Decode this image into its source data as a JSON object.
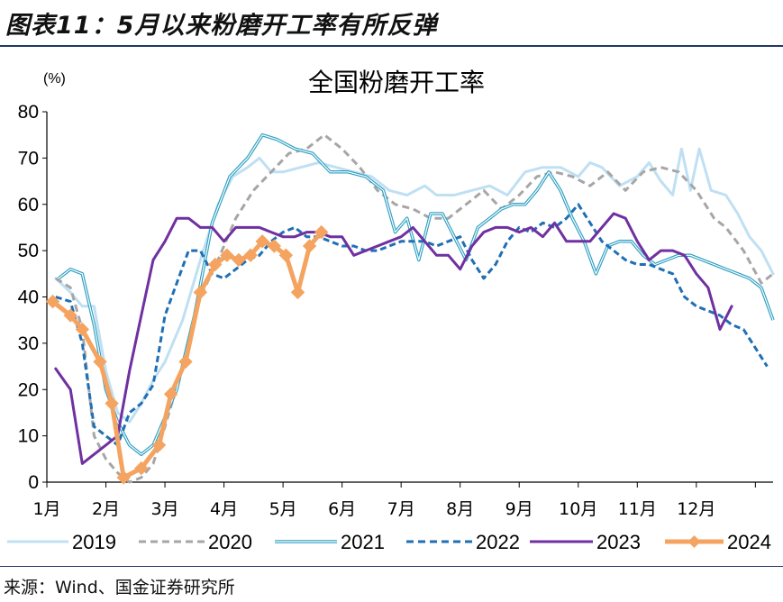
{
  "figure": {
    "title": "图表11：5月以来粉磨开工率有所反弹",
    "source": "来源：Wind、国金证券研究所"
  },
  "chart_data": {
    "type": "line",
    "title": "全国粉磨开工率",
    "unit": "(%)",
    "ylim": [
      0,
      80
    ],
    "yticks": [
      0,
      10,
      20,
      30,
      40,
      50,
      60,
      70,
      80
    ],
    "xlim": [
      0,
      12.3
    ],
    "month_labels": [
      "1月",
      "2月",
      "3月",
      "4月",
      "5月",
      "6月",
      "7月",
      "8月",
      "9月",
      "10月",
      "11月",
      "12月"
    ],
    "legend_position": "bottom",
    "series": [
      {
        "name": "2019",
        "color": "#bfe0f3",
        "style": "solid",
        "width": 3,
        "marker": "none",
        "points": [
          [
            0.15,
            44
          ],
          [
            0.4,
            41
          ],
          [
            0.6,
            38
          ],
          [
            0.8,
            38
          ],
          [
            1.0,
            24
          ],
          [
            1.2,
            15
          ],
          [
            1.4,
            13
          ],
          [
            1.6,
            17
          ],
          [
            1.8,
            22
          ],
          [
            2.0,
            26
          ],
          [
            2.3,
            35
          ],
          [
            2.6,
            48
          ],
          [
            2.9,
            60
          ],
          [
            3.15,
            66
          ],
          [
            3.4,
            68
          ],
          [
            3.6,
            70
          ],
          [
            3.8,
            67
          ],
          [
            4.0,
            67
          ],
          [
            4.3,
            68
          ],
          [
            4.6,
            69
          ],
          [
            4.9,
            68
          ],
          [
            5.2,
            67
          ],
          [
            5.5,
            66
          ],
          [
            5.8,
            63
          ],
          [
            6.1,
            62
          ],
          [
            6.4,
            64
          ],
          [
            6.6,
            62
          ],
          [
            6.9,
            62
          ],
          [
            7.2,
            63
          ],
          [
            7.5,
            64
          ],
          [
            7.8,
            62
          ],
          [
            8.1,
            67
          ],
          [
            8.4,
            68
          ],
          [
            8.7,
            68
          ],
          [
            9.0,
            66
          ],
          [
            9.2,
            69
          ],
          [
            9.4,
            68
          ],
          [
            9.7,
            64
          ],
          [
            10.0,
            66
          ],
          [
            10.2,
            69
          ],
          [
            10.4,
            65
          ],
          [
            10.6,
            62
          ],
          [
            10.75,
            72
          ],
          [
            10.9,
            63
          ],
          [
            11.05,
            72
          ],
          [
            11.25,
            63
          ],
          [
            11.5,
            62
          ],
          [
            11.7,
            58
          ],
          [
            11.9,
            53
          ],
          [
            12.1,
            50
          ],
          [
            12.3,
            45
          ]
        ]
      },
      {
        "name": "2020",
        "color": "#a6a6a6",
        "style": "dashed",
        "width": 3,
        "marker": "none",
        "points": [
          [
            0.15,
            44
          ],
          [
            0.4,
            42
          ],
          [
            0.6,
            33
          ],
          [
            0.8,
            10
          ],
          [
            1.0,
            5
          ],
          [
            1.2,
            2
          ],
          [
            1.4,
            0
          ],
          [
            1.6,
            1
          ],
          [
            1.8,
            4
          ],
          [
            2.0,
            12
          ],
          [
            2.3,
            25
          ],
          [
            2.6,
            40
          ],
          [
            2.9,
            48
          ],
          [
            3.2,
            57
          ],
          [
            3.5,
            63
          ],
          [
            3.8,
            67
          ],
          [
            4.1,
            71
          ],
          [
            4.4,
            72
          ],
          [
            4.7,
            75
          ],
          [
            5.0,
            72
          ],
          [
            5.3,
            68
          ],
          [
            5.6,
            63
          ],
          [
            5.9,
            60
          ],
          [
            6.2,
            59
          ],
          [
            6.5,
            57
          ],
          [
            6.8,
            57
          ],
          [
            7.1,
            60
          ],
          [
            7.4,
            63
          ],
          [
            7.7,
            59
          ],
          [
            8.0,
            62
          ],
          [
            8.3,
            66
          ],
          [
            8.6,
            67
          ],
          [
            8.9,
            66
          ],
          [
            9.2,
            64
          ],
          [
            9.5,
            67
          ],
          [
            9.8,
            63
          ],
          [
            10.1,
            67
          ],
          [
            10.4,
            68
          ],
          [
            10.7,
            67
          ],
          [
            11.0,
            63
          ],
          [
            11.3,
            57
          ],
          [
            11.5,
            55
          ],
          [
            11.8,
            50
          ],
          [
            12.1,
            43
          ],
          [
            12.3,
            45
          ]
        ]
      },
      {
        "name": "2021",
        "color": "#2e9fc2",
        "style": "double",
        "width": 3,
        "marker": "none",
        "points": [
          [
            0.2,
            44
          ],
          [
            0.4,
            46
          ],
          [
            0.6,
            45
          ],
          [
            0.8,
            34
          ],
          [
            1.0,
            20
          ],
          [
            1.2,
            13
          ],
          [
            1.4,
            8
          ],
          [
            1.6,
            6
          ],
          [
            1.8,
            8
          ],
          [
            2.0,
            14
          ],
          [
            2.2,
            20
          ],
          [
            2.5,
            36
          ],
          [
            2.8,
            56
          ],
          [
            3.1,
            66
          ],
          [
            3.4,
            70
          ],
          [
            3.65,
            75
          ],
          [
            3.9,
            74
          ],
          [
            4.2,
            72
          ],
          [
            4.5,
            71
          ],
          [
            4.8,
            67
          ],
          [
            5.1,
            67
          ],
          [
            5.4,
            66
          ],
          [
            5.7,
            63
          ],
          [
            5.9,
            54
          ],
          [
            6.1,
            57
          ],
          [
            6.3,
            48
          ],
          [
            6.5,
            58
          ],
          [
            6.7,
            58
          ],
          [
            6.9,
            53
          ],
          [
            7.1,
            48
          ],
          [
            7.3,
            55
          ],
          [
            7.5,
            57
          ],
          [
            7.7,
            59
          ],
          [
            7.9,
            60
          ],
          [
            8.1,
            60
          ],
          [
            8.3,
            63
          ],
          [
            8.5,
            67
          ],
          [
            8.7,
            63
          ],
          [
            8.9,
            57
          ],
          [
            9.1,
            52
          ],
          [
            9.3,
            45
          ],
          [
            9.5,
            51
          ],
          [
            9.7,
            52
          ],
          [
            9.9,
            52
          ],
          [
            10.1,
            49
          ],
          [
            10.3,
            47
          ],
          [
            10.5,
            48
          ],
          [
            10.7,
            49
          ],
          [
            10.9,
            49
          ],
          [
            11.1,
            48
          ],
          [
            11.3,
            47
          ],
          [
            11.5,
            46
          ],
          [
            11.7,
            45
          ],
          [
            11.9,
            44
          ],
          [
            12.1,
            42
          ],
          [
            12.3,
            35
          ]
        ]
      },
      {
        "name": "2022",
        "color": "#1f6fb5",
        "style": "dashed-thick",
        "width": 3,
        "marker": "none",
        "points": [
          [
            0.15,
            40
          ],
          [
            0.4,
            39
          ],
          [
            0.6,
            30
          ],
          [
            0.8,
            12
          ],
          [
            1.0,
            10
          ],
          [
            1.2,
            8
          ],
          [
            1.4,
            15
          ],
          [
            1.6,
            17
          ],
          [
            1.8,
            21
          ],
          [
            2.0,
            36
          ],
          [
            2.2,
            43
          ],
          [
            2.4,
            50
          ],
          [
            2.6,
            50
          ],
          [
            2.8,
            45
          ],
          [
            3.0,
            44
          ],
          [
            3.2,
            46
          ],
          [
            3.4,
            48
          ],
          [
            3.6,
            49
          ],
          [
            3.8,
            52
          ],
          [
            4.0,
            54
          ],
          [
            4.2,
            55
          ],
          [
            4.4,
            53
          ],
          [
            4.6,
            53
          ],
          [
            4.8,
            52
          ],
          [
            5.0,
            51
          ],
          [
            5.2,
            51
          ],
          [
            5.4,
            50
          ],
          [
            5.6,
            50
          ],
          [
            5.8,
            51
          ],
          [
            6.0,
            52
          ],
          [
            6.2,
            52
          ],
          [
            6.4,
            52
          ],
          [
            6.6,
            51
          ],
          [
            6.8,
            52
          ],
          [
            7.0,
            53
          ],
          [
            7.2,
            48
          ],
          [
            7.4,
            44
          ],
          [
            7.6,
            47
          ],
          [
            7.8,
            52
          ],
          [
            8.0,
            55
          ],
          [
            8.2,
            54
          ],
          [
            8.4,
            56
          ],
          [
            8.6,
            55
          ],
          [
            8.8,
            57
          ],
          [
            9.0,
            60
          ],
          [
            9.2,
            56
          ],
          [
            9.4,
            52
          ],
          [
            9.6,
            50
          ],
          [
            9.8,
            48
          ],
          [
            10.0,
            47
          ],
          [
            10.2,
            47
          ],
          [
            10.4,
            46
          ],
          [
            10.6,
            45
          ],
          [
            10.8,
            40
          ],
          [
            11.0,
            38
          ],
          [
            11.2,
            37
          ],
          [
            11.4,
            36
          ],
          [
            11.6,
            34
          ],
          [
            11.8,
            33
          ],
          [
            12.0,
            29
          ],
          [
            12.2,
            25
          ]
        ]
      },
      {
        "name": "2023",
        "color": "#7030a0",
        "style": "solid",
        "width": 3,
        "marker": "none",
        "points": [
          [
            0.15,
            24.5
          ],
          [
            0.4,
            20
          ],
          [
            0.6,
            4
          ],
          [
            0.8,
            6
          ],
          [
            1.0,
            8
          ],
          [
            1.2,
            10
          ],
          [
            1.4,
            24
          ],
          [
            1.6,
            36
          ],
          [
            1.8,
            48
          ],
          [
            2.0,
            52
          ],
          [
            2.2,
            57
          ],
          [
            2.4,
            57
          ],
          [
            2.6,
            55
          ],
          [
            2.8,
            55
          ],
          [
            3.0,
            52
          ],
          [
            3.2,
            55
          ],
          [
            3.4,
            55
          ],
          [
            3.6,
            55
          ],
          [
            3.8,
            54
          ],
          [
            4.0,
            53
          ],
          [
            4.2,
            53
          ],
          [
            4.4,
            54
          ],
          [
            4.6,
            54
          ],
          [
            4.8,
            53
          ],
          [
            5.0,
            53
          ],
          [
            5.2,
            49
          ],
          [
            5.4,
            50
          ],
          [
            5.6,
            51
          ],
          [
            5.8,
            52
          ],
          [
            6.0,
            53
          ],
          [
            6.2,
            55
          ],
          [
            6.4,
            52
          ],
          [
            6.6,
            49
          ],
          [
            6.8,
            49
          ],
          [
            7.0,
            46
          ],
          [
            7.2,
            51
          ],
          [
            7.4,
            54
          ],
          [
            7.6,
            55
          ],
          [
            7.8,
            55
          ],
          [
            8.0,
            54
          ],
          [
            8.2,
            55
          ],
          [
            8.4,
            53
          ],
          [
            8.6,
            56
          ],
          [
            8.8,
            52
          ],
          [
            9.0,
            52
          ],
          [
            9.2,
            52
          ],
          [
            9.4,
            55
          ],
          [
            9.6,
            58
          ],
          [
            9.8,
            57
          ],
          [
            10.0,
            52
          ],
          [
            10.2,
            48
          ],
          [
            10.4,
            50
          ],
          [
            10.6,
            50
          ],
          [
            10.8,
            49
          ],
          [
            11.0,
            45
          ],
          [
            11.2,
            42
          ],
          [
            11.4,
            33
          ],
          [
            11.6,
            38
          ]
        ]
      },
      {
        "name": "2024",
        "color": "#f4a460",
        "style": "solid-diamond",
        "width": 5,
        "marker": "diamond",
        "points": [
          [
            0.1,
            39
          ],
          [
            0.4,
            36
          ],
          [
            0.6,
            33
          ],
          [
            0.9,
            26
          ],
          [
            1.1,
            17
          ],
          [
            1.3,
            1
          ],
          [
            1.6,
            3
          ],
          [
            1.9,
            8
          ],
          [
            2.1,
            19
          ],
          [
            2.35,
            26
          ],
          [
            2.6,
            41
          ],
          [
            2.85,
            47
          ],
          [
            3.05,
            49
          ],
          [
            3.25,
            48
          ],
          [
            3.45,
            49
          ],
          [
            3.65,
            52
          ],
          [
            3.85,
            51
          ],
          [
            4.05,
            49
          ],
          [
            4.25,
            41
          ],
          [
            4.45,
            51
          ],
          [
            4.65,
            54
          ]
        ]
      }
    ]
  }
}
